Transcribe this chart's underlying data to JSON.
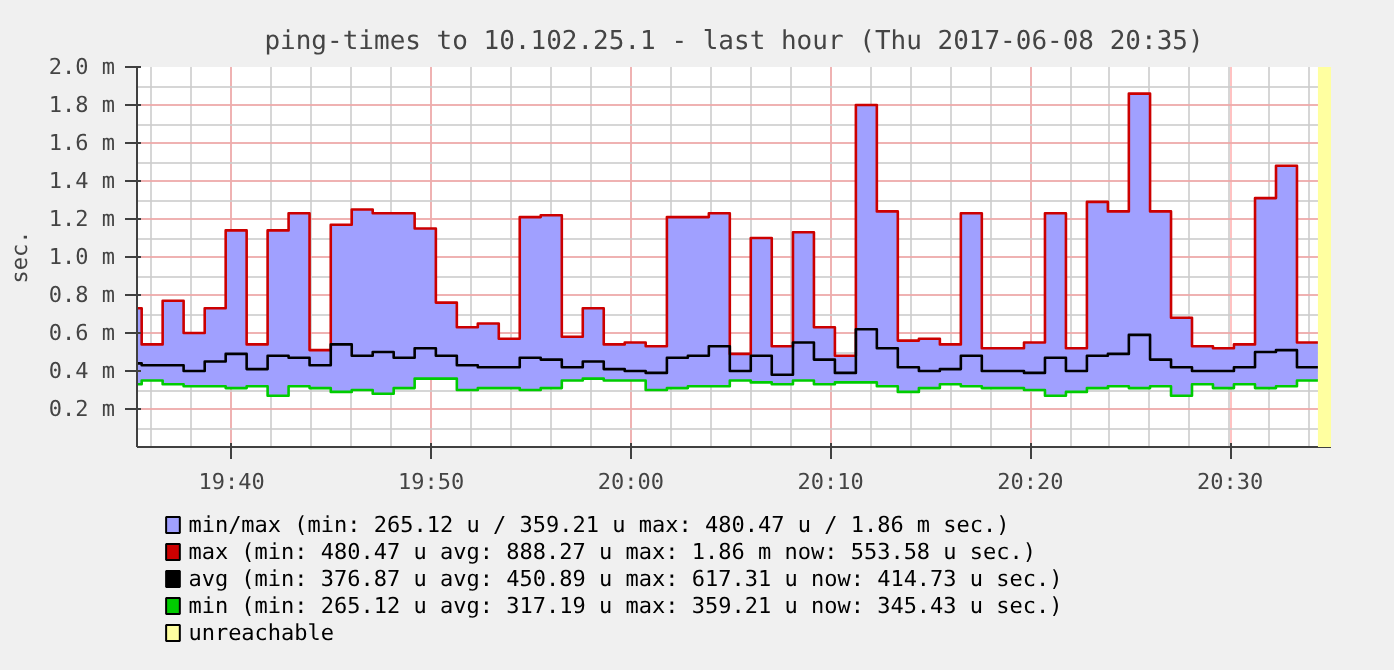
{
  "chart_data": {
    "type": "step",
    "title": "ping-times to 10.102.25.1 - last hour (Thu 2017-06-08 20:35)",
    "ylabel": "sec.",
    "x": [
      19.5917,
      19.6092,
      19.6267,
      19.6443,
      19.6618,
      19.6793,
      19.6968,
      19.7143,
      19.7318,
      19.7495,
      19.767,
      19.7845,
      19.802,
      19.8195,
      19.8372,
      19.8547,
      19.8722,
      19.8897,
      19.9072,
      19.9247,
      19.9423,
      19.9598,
      19.9773,
      19.9948,
      20.0123,
      20.03,
      20.0475,
      20.065,
      20.0825,
      20.1,
      20.1175,
      20.1352,
      20.1527,
      20.1702,
      20.1877,
      20.2052,
      20.2227,
      20.2403,
      20.2578,
      20.2753,
      20.2928,
      20.3103,
      20.328,
      20.3455,
      20.363,
      20.3805,
      20.398,
      20.4155,
      20.4332,
      20.4507,
      20.4682,
      20.4857,
      20.5032,
      20.5208,
      20.5383,
      20.5558,
      20.5733
    ],
    "series": [
      {
        "name": "min/max  (min: 265.12 u  / 359.21 u  max: 480.47 u  /   1.86 m sec.)",
        "type": "area",
        "color": "#a0a0ff",
        "values": [
          0.73,
          0.54,
          0.77,
          0.6,
          0.73,
          1.14,
          0.54,
          1.14,
          1.23,
          0.51,
          1.17,
          1.25,
          1.23,
          1.23,
          1.15,
          0.76,
          0.63,
          0.65,
          0.57,
          1.21,
          1.22,
          0.58,
          0.73,
          0.54,
          0.55,
          0.53,
          1.21,
          1.21,
          1.23,
          0.49,
          1.1,
          0.53,
          1.13,
          0.63,
          0.48,
          1.8,
          1.24,
          0.56,
          0.57,
          0.54,
          1.23,
          0.52,
          0.52,
          0.55,
          1.23,
          0.52,
          1.29,
          1.24,
          1.86,
          1.24,
          0.68,
          0.53,
          0.52,
          0.54,
          1.31,
          1.48,
          0.55
        ]
      },
      {
        "name": "max  (min: 480.47 u  avg: 888.27 u  max:   1.86 m  now: 553.58 u sec.)",
        "color": "#cc0000",
        "values": [
          0.73,
          0.54,
          0.77,
          0.6,
          0.73,
          1.14,
          0.54,
          1.14,
          1.23,
          0.51,
          1.17,
          1.25,
          1.23,
          1.23,
          1.15,
          0.76,
          0.63,
          0.65,
          0.57,
          1.21,
          1.22,
          0.58,
          0.73,
          0.54,
          0.55,
          0.53,
          1.21,
          1.21,
          1.23,
          0.49,
          1.1,
          0.53,
          1.13,
          0.63,
          0.48,
          1.8,
          1.24,
          0.56,
          0.57,
          0.54,
          1.23,
          0.52,
          0.52,
          0.55,
          1.23,
          0.52,
          1.29,
          1.24,
          1.86,
          1.24,
          0.68,
          0.53,
          0.52,
          0.54,
          1.31,
          1.48,
          0.55
        ]
      },
      {
        "name": "avg  (min: 376.87 u  avg: 450.89 u  max: 617.31 u  now: 414.73 u sec.)",
        "color": "#000000",
        "values": [
          0.44,
          0.43,
          0.43,
          0.4,
          0.45,
          0.49,
          0.41,
          0.48,
          0.47,
          0.43,
          0.54,
          0.48,
          0.5,
          0.47,
          0.52,
          0.48,
          0.43,
          0.42,
          0.42,
          0.47,
          0.46,
          0.42,
          0.45,
          0.41,
          0.4,
          0.39,
          0.47,
          0.48,
          0.53,
          0.4,
          0.48,
          0.38,
          0.55,
          0.46,
          0.39,
          0.62,
          0.52,
          0.42,
          0.4,
          0.41,
          0.48,
          0.4,
          0.4,
          0.39,
          0.47,
          0.4,
          0.48,
          0.49,
          0.59,
          0.46,
          0.42,
          0.4,
          0.4,
          0.42,
          0.5,
          0.51,
          0.42
        ]
      },
      {
        "name": "min  (min: 265.12 u  avg: 317.19 u  max: 359.21 u  now: 345.43 u sec.)",
        "color": "#00cc00",
        "values": [
          0.33,
          0.35,
          0.33,
          0.32,
          0.32,
          0.31,
          0.32,
          0.27,
          0.32,
          0.31,
          0.29,
          0.3,
          0.28,
          0.31,
          0.36,
          0.36,
          0.3,
          0.31,
          0.31,
          0.3,
          0.31,
          0.35,
          0.36,
          0.35,
          0.35,
          0.3,
          0.31,
          0.32,
          0.32,
          0.35,
          0.34,
          0.33,
          0.35,
          0.33,
          0.34,
          0.34,
          0.32,
          0.29,
          0.31,
          0.33,
          0.32,
          0.31,
          0.31,
          0.3,
          0.27,
          0.29,
          0.31,
          0.32,
          0.31,
          0.32,
          0.27,
          0.33,
          0.31,
          0.33,
          0.31,
          0.32,
          0.35
        ]
      }
    ],
    "bands": [
      {
        "axis": "x",
        "from": 20.5733,
        "to": 20.5842,
        "label": "unreachable",
        "color": "#ffffa0"
      }
    ],
    "xlim": [
      19.5878,
      20.5842
    ],
    "xticks": [
      {
        "value": 19.6667,
        "label": "19:40"
      },
      {
        "value": 19.8333,
        "label": "19:50"
      },
      {
        "value": 20.0,
        "label": "20:00"
      },
      {
        "value": 20.1667,
        "label": "20:10"
      },
      {
        "value": 20.3333,
        "label": "20:20"
      },
      {
        "value": 20.5,
        "label": "20:30"
      }
    ],
    "ylim": [
      0,
      2.0
    ],
    "yticks": [
      {
        "value": 0.2,
        "label": "0.2 m"
      },
      {
        "value": 0.4,
        "label": "0.4 m"
      },
      {
        "value": 0.6,
        "label": "0.6 m"
      },
      {
        "value": 0.8,
        "label": "0.8 m"
      },
      {
        "value": 1.0,
        "label": "1.0 m"
      },
      {
        "value": 1.2,
        "label": "1.2 m"
      },
      {
        "value": 1.4,
        "label": "1.4 m"
      },
      {
        "value": 1.6,
        "label": "1.6 m"
      },
      {
        "value": 1.8,
        "label": "1.8 m"
      },
      {
        "value": 2.0,
        "label": "2.0 m"
      }
    ],
    "grid": true,
    "legend": "bottom"
  }
}
